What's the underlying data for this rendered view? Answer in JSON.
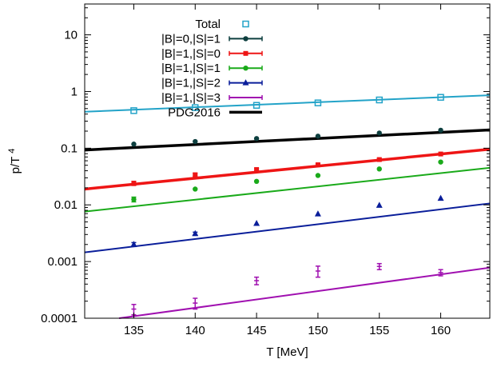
{
  "chart_data": {
    "type": "scatter",
    "xlabel": "T [MeV]",
    "ylabel": "p/T",
    "ylabel_superscript": "4",
    "xlim": [
      131,
      164
    ],
    "ylim": [
      0.0001,
      35
    ],
    "yscale": "log",
    "grid": false,
    "legend_position": "top-center",
    "x_ticks": [
      135,
      140,
      145,
      150,
      155,
      160
    ],
    "x_tick_labels": [
      "135",
      "140",
      "145",
      "150",
      "155",
      "160"
    ],
    "y_ticks": [
      0.0001,
      0.001,
      0.01,
      0.1,
      1,
      10
    ],
    "y_tick_labels": [
      "0.0001",
      "0.001",
      "0.01",
      "0.1",
      "1",
      "10"
    ],
    "series": [
      {
        "name": "Total",
        "color": "#23a3c8",
        "marker": "open-square",
        "line_x": [
          131,
          164
        ],
        "line_y": [
          0.44,
          0.86
        ],
        "x": [
          135,
          140,
          145,
          150,
          155,
          160
        ],
        "y": [
          0.46,
          0.52,
          0.57,
          0.63,
          0.71,
          0.79
        ],
        "err": [
          0,
          0,
          0,
          0,
          0,
          0
        ]
      },
      {
        "name": "|B|=0,|S|=1",
        "color": "#0d3f3f",
        "marker": "filled-circle",
        "line_x": [],
        "line_y": [],
        "x": [
          135,
          140,
          145,
          150,
          155,
          160
        ],
        "y": [
          0.118,
          0.131,
          0.148,
          0.163,
          0.185,
          0.207
        ],
        "err": [
          0,
          0,
          0,
          0,
          0,
          0
        ]
      },
      {
        "name": "|B|=1,|S|=0",
        "color": "#ee1515",
        "marker": "filled-square",
        "line_x": [
          131,
          164
        ],
        "line_y": [
          0.019,
          0.096
        ],
        "x": [
          135,
          140,
          145,
          150,
          155,
          160
        ],
        "y": [
          0.024,
          0.034,
          0.042,
          0.051,
          0.063,
          0.079
        ],
        "err": [
          0.002,
          0.002,
          0.002,
          0.002,
          0.003,
          0.003
        ]
      },
      {
        "name": "|B|=1,|S|=1",
        "color": "#1aaa1a",
        "marker": "filled-circle",
        "line_x": [
          131,
          164
        ],
        "line_y": [
          0.0076,
          0.045
        ],
        "x": [
          135,
          140,
          145,
          150,
          155,
          160
        ],
        "y": [
          0.0125,
          0.019,
          0.026,
          0.033,
          0.043,
          0.057
        ],
        "err": [
          0.0012,
          0,
          0,
          0,
          0,
          0
        ]
      },
      {
        "name": "|B|=1,|S|=2",
        "color": "#0a1e9a",
        "marker": "filled-triangle",
        "line_x": [
          131,
          164
        ],
        "line_y": [
          0.00145,
          0.0106
        ],
        "x": [
          135,
          140,
          145,
          150,
          155,
          160
        ],
        "y": [
          0.002,
          0.0031,
          0.0047,
          0.0069,
          0.0098,
          0.013
        ],
        "err": [
          0.00016,
          0.0002,
          0,
          0,
          0,
          0
        ]
      },
      {
        "name": "|B|=1,|S|=3",
        "color": "#a010b0",
        "marker": "tick",
        "line_x": [
          133.8,
          164
        ],
        "line_y": [
          0.0001,
          0.00078
        ],
        "x": [
          135,
          140,
          145,
          150,
          155,
          160
        ],
        "y": [
          0.000145,
          0.000185,
          0.00046,
          0.00068,
          0.00082,
          0.00064
        ],
        "err": [
          3e-05,
          4e-05,
          7e-05,
          0.00015,
          0.0001,
          8e-05
        ]
      },
      {
        "name": "PDG2016",
        "color": "#000000",
        "marker": "none",
        "line_x": [
          131,
          164
        ],
        "line_y": [
          0.093,
          0.21
        ],
        "x": [],
        "y": [],
        "err": []
      }
    ]
  }
}
